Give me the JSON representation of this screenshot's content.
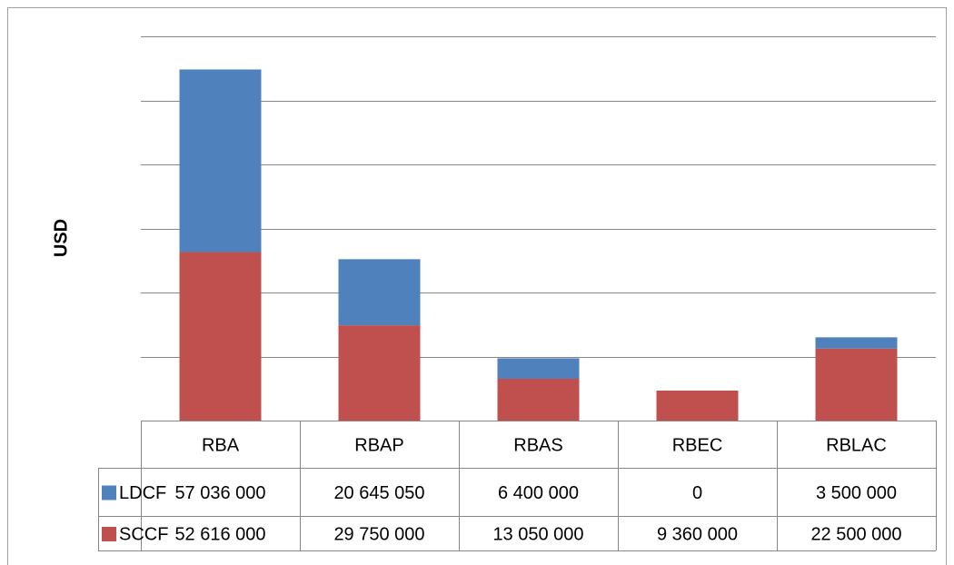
{
  "chart_data": {
    "type": "stacked_bar",
    "y_label": "USD",
    "categories": [
      "RBA",
      "RBAP",
      "RBAS",
      "RBEC",
      "RBLAC"
    ],
    "series": [
      {
        "name": "LDCF",
        "color": "#4f81bd",
        "values": [
          57036000,
          20645050,
          6400000,
          0,
          3500000
        ],
        "value_labels": [
          "57 036 000",
          "20 645 050",
          "6 400 000",
          "0",
          "3 500 000"
        ]
      },
      {
        "name": "SCCF",
        "color": "#c0504d",
        "values": [
          52616000,
          29750000,
          13050000,
          9360000,
          22500000
        ],
        "value_labels": [
          "52 616 000",
          "29 750 000",
          "13 050 000",
          "9 360 000",
          "22 500 000"
        ]
      }
    ],
    "ylim": [
      0,
      120000000
    ],
    "yticks": [
      0,
      20000000,
      40000000,
      60000000,
      80000000,
      100000000,
      120000000
    ],
    "grid": true,
    "data_table": true
  }
}
